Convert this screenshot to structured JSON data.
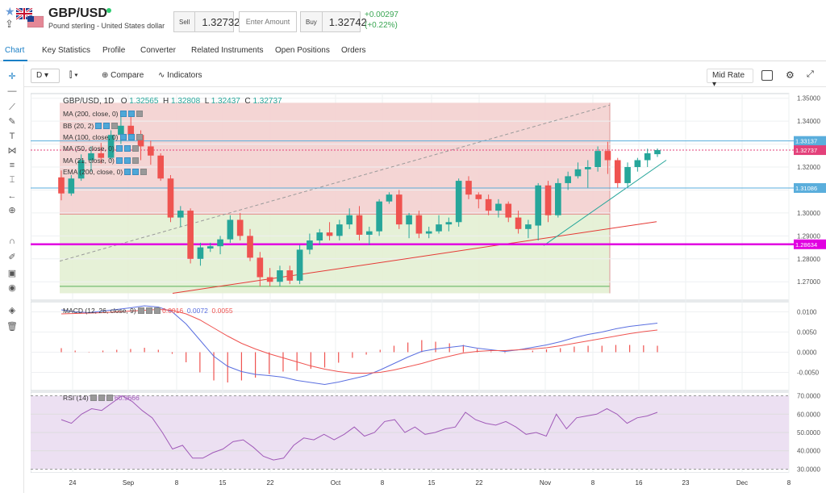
{
  "header": {
    "pair": "GBP/USD",
    "description": "Pound sterling - United States dollar",
    "sell_label": "Sell",
    "sell_price": "1.32732",
    "amount_placeholder": "Enter Amount",
    "buy_label": "Buy",
    "buy_price": "1.32742",
    "change_abs": "+0.00297",
    "change_pct": "(+0.22%)"
  },
  "tabs": [
    "Chart",
    "Key Statistics",
    "Profile",
    "Converter",
    "Related Instruments",
    "Open Positions",
    "Orders"
  ],
  "toolbar": {
    "interval": "D",
    "compare": "Compare",
    "indicators": "Indicators",
    "price_type": "Mid Rate"
  },
  "legend": {
    "title": "GBP/USD, 1D",
    "o_label": "O",
    "o": "1.32565",
    "h_label": "H",
    "h": "1.32808",
    "l_label": "L",
    "l": "1.32437",
    "c_label": "C",
    "c": "1.32737",
    "indicators": [
      "MA (200, close, 0)",
      "BB (20, 2)",
      "MA (100, close, 0)",
      "MA (50, close, 0)",
      "MA (21, close, 0)",
      "EMA (200, close, 0)"
    ]
  },
  "macd": {
    "label": "MACD (12, 26, close, 9)",
    "v1": "0.0016",
    "v2": "0.0072",
    "v3": "0.0055"
  },
  "rsi": {
    "label": "RSI (14)",
    "value": "60.9666"
  },
  "colors": {
    "up": "#26a69a",
    "down": "#ef5350",
    "accent": "#1a7fc6",
    "magenta": "#e100e1",
    "macd_line": "#5a6fe0",
    "signal_line": "#ef5350",
    "rsi_line": "#a05ab8"
  },
  "chart_data": [
    {
      "type": "candlestick",
      "title": "GBP/USD, 1D",
      "x_tick_labels": [
        "24",
        "Sep",
        "8",
        "15",
        "22",
        "Oct",
        "8",
        "15",
        "22",
        "Nov",
        "8",
        "16",
        "23",
        "Dec",
        "8"
      ],
      "y_tick_labels": [
        "1.35000",
        "1.34000",
        "1.33000",
        "1.32000",
        "1.31000",
        "1.30000",
        "1.29000",
        "1.28000",
        "1.27000"
      ],
      "ylim": [
        1.262,
        1.352
      ],
      "price_markers": [
        "1.33137",
        "1.32737",
        "1.31086",
        "1.28634"
      ],
      "candles": [
        [
          1.3155,
          1.3185,
          1.3055,
          1.3085
        ],
        [
          1.3085,
          1.3165,
          1.3075,
          1.315
        ],
        [
          1.315,
          1.3255,
          1.314,
          1.323
        ],
        [
          1.323,
          1.329,
          1.318,
          1.326
        ],
        [
          1.326,
          1.3305,
          1.3215,
          1.324
        ],
        [
          1.324,
          1.336,
          1.323,
          1.334
        ],
        [
          1.334,
          1.342,
          1.33,
          1.338
        ],
        [
          1.338,
          1.344,
          1.332,
          1.334
        ],
        [
          1.334,
          1.336,
          1.323,
          1.329
        ],
        [
          1.329,
          1.3315,
          1.321,
          1.325
        ],
        [
          1.325,
          1.326,
          1.314,
          1.315
        ],
        [
          1.315,
          1.3165,
          1.296,
          1.298
        ],
        [
          1.298,
          1.303,
          1.294,
          1.301
        ],
        [
          1.301,
          1.302,
          1.278,
          1.28
        ],
        [
          1.28,
          1.287,
          1.277,
          1.285
        ],
        [
          1.2845,
          1.287,
          1.283,
          1.2855
        ],
        [
          1.2855,
          1.29,
          1.282,
          1.2885
        ],
        [
          1.2885,
          1.299,
          1.287,
          1.297
        ],
        [
          1.297,
          1.3,
          1.288,
          1.29
        ],
        [
          1.29,
          1.293,
          1.279,
          1.2805
        ],
        [
          1.2805,
          1.283,
          1.268,
          1.272
        ],
        [
          1.272,
          1.276,
          1.268,
          1.27
        ],
        [
          1.27,
          1.277,
          1.268,
          1.275
        ],
        [
          1.275,
          1.277,
          1.269,
          1.2705
        ],
        [
          1.2705,
          1.286,
          1.269,
          1.284
        ],
        [
          1.284,
          1.291,
          1.282,
          1.288
        ],
        [
          1.288,
          1.293,
          1.286,
          1.2915
        ],
        [
          1.2915,
          1.296,
          1.288,
          1.29
        ],
        [
          1.29,
          1.297,
          1.288,
          1.295
        ],
        [
          1.295,
          1.302,
          1.293,
          1.299
        ],
        [
          1.299,
          1.303,
          1.288,
          1.2905
        ],
        [
          1.2905,
          1.294,
          1.286,
          1.292
        ],
        [
          1.292,
          1.306,
          1.29,
          1.305
        ],
        [
          1.305,
          1.309,
          1.304,
          1.308
        ],
        [
          1.308,
          1.31,
          1.293,
          1.295
        ],
        [
          1.295,
          1.3,
          1.289,
          1.299
        ],
        [
          1.299,
          1.301,
          1.289,
          1.291
        ],
        [
          1.291,
          1.294,
          1.289,
          1.292
        ],
        [
          1.292,
          1.299,
          1.291,
          1.295
        ],
        [
          1.295,
          1.298,
          1.292,
          1.296
        ],
        [
          1.296,
          1.315,
          1.294,
          1.314
        ],
        [
          1.314,
          1.316,
          1.306,
          1.308
        ],
        [
          1.308,
          1.309,
          1.302,
          1.306
        ],
        [
          1.306,
          1.308,
          1.299,
          1.301
        ],
        [
          1.301,
          1.306,
          1.298,
          1.304
        ],
        [
          1.304,
          1.305,
          1.296,
          1.298
        ],
        [
          1.298,
          1.301,
          1.291,
          1.293
        ],
        [
          1.293,
          1.297,
          1.289,
          1.295
        ],
        [
          1.2945,
          1.313,
          1.288,
          1.312
        ],
        [
          1.312,
          1.314,
          1.296,
          1.299
        ],
        [
          1.299,
          1.315,
          1.298,
          1.313
        ],
        [
          1.313,
          1.318,
          1.31,
          1.316
        ],
        [
          1.316,
          1.322,
          1.315,
          1.319
        ],
        [
          1.319,
          1.323,
          1.311,
          1.32
        ],
        [
          1.32,
          1.329,
          1.318,
          1.327
        ],
        [
          1.327,
          1.331,
          1.317,
          1.323
        ],
        [
          1.323,
          1.324,
          1.311,
          1.313
        ],
        [
          1.313,
          1.322,
          1.311,
          1.32
        ],
        [
          1.32,
          1.324,
          1.318,
          1.323
        ],
        [
          1.323,
          1.328,
          1.32,
          1.326
        ],
        [
          1.3256,
          1.3281,
          1.3244,
          1.3274
        ]
      ]
    },
    {
      "type": "line",
      "title": "MACD (12, 26, close, 9)",
      "y_tick_labels": [
        "0.0100",
        "0.0050",
        "0.0000",
        "-0.0050"
      ],
      "ylim": [
        -0.0095,
        0.0125
      ],
      "series": [
        {
          "name": "MACD",
          "values": [
            0.0105,
            0.01,
            0.0098,
            0.0102,
            0.0106,
            0.011,
            0.0115,
            0.0112,
            0.01,
            0.007,
            0.003,
            -0.001,
            -0.0035,
            -0.0048,
            -0.0055,
            -0.0058,
            -0.0062,
            -0.007,
            -0.0075,
            -0.008,
            -0.0074,
            -0.0066,
            -0.0058,
            -0.0044,
            -0.0028,
            -0.0012,
            0.0002,
            0.0008,
            0.0012,
            0.0016,
            0.001,
            0.0006,
            0.0002,
            0.0006,
            0.0012,
            0.0018,
            0.0026,
            0.0036,
            0.0044,
            0.005,
            0.0058,
            0.0064,
            0.0068,
            0.0072
          ]
        },
        {
          "name": "Signal",
          "values": [
            0.0095,
            0.0096,
            0.0097,
            0.0098,
            0.01,
            0.0102,
            0.0104,
            0.0106,
            0.0104,
            0.0095,
            0.008,
            0.006,
            0.004,
            0.0022,
            0.0008,
            -0.0004,
            -0.0014,
            -0.0024,
            -0.0034,
            -0.0042,
            -0.0048,
            -0.0052,
            -0.0052,
            -0.005,
            -0.0044,
            -0.0036,
            -0.0028,
            -0.0018,
            -0.001,
            -0.0002,
            0.0002,
            0.0004,
            0.0004,
            0.0006,
            0.0008,
            0.0011,
            0.0016,
            0.0022,
            0.0028,
            0.0034,
            0.004,
            0.0046,
            0.0051,
            0.0055
          ]
        },
        {
          "name": "Histogram",
          "values": [
            0.001,
            0.0004,
            0.0001,
            0.0004,
            0.0006,
            0.0008,
            0.0011,
            0.0006,
            -0.0004,
            -0.0025,
            -0.005,
            -0.007,
            -0.0075,
            -0.007,
            -0.0063,
            -0.0054,
            -0.0048,
            -0.0046,
            -0.0041,
            -0.0038,
            -0.0026,
            -0.0014,
            -0.0006,
            0.0006,
            0.0016,
            0.0024,
            0.003,
            0.0026,
            0.0022,
            0.0018,
            0.0008,
            0.0002,
            -0.0002,
            0.0,
            0.0004,
            0.0007,
            0.001,
            0.0014,
            0.0016,
            0.0016,
            0.0018,
            0.0018,
            0.0017,
            0.0016
          ]
        }
      ]
    },
    {
      "type": "line",
      "title": "RSI (14)",
      "y_tick_labels": [
        "70.0000",
        "60.0000",
        "50.0000",
        "40.0000",
        "30.0000"
      ],
      "ylim": [
        28,
        72
      ],
      "series": [
        {
          "name": "RSI",
          "values": [
            57,
            55,
            60,
            63,
            62,
            66,
            70,
            67,
            62,
            58,
            50,
            41,
            43,
            36,
            36,
            39,
            41,
            45,
            46,
            42,
            37,
            35,
            36,
            43,
            47,
            46,
            49,
            46,
            49,
            53,
            48,
            50,
            56,
            57,
            50,
            53,
            49,
            50,
            52,
            53,
            61,
            57,
            55,
            54,
            56,
            53,
            49,
            50,
            48,
            60,
            52,
            58,
            59,
            60,
            63,
            60,
            55,
            58,
            59,
            61
          ]
        }
      ]
    }
  ]
}
